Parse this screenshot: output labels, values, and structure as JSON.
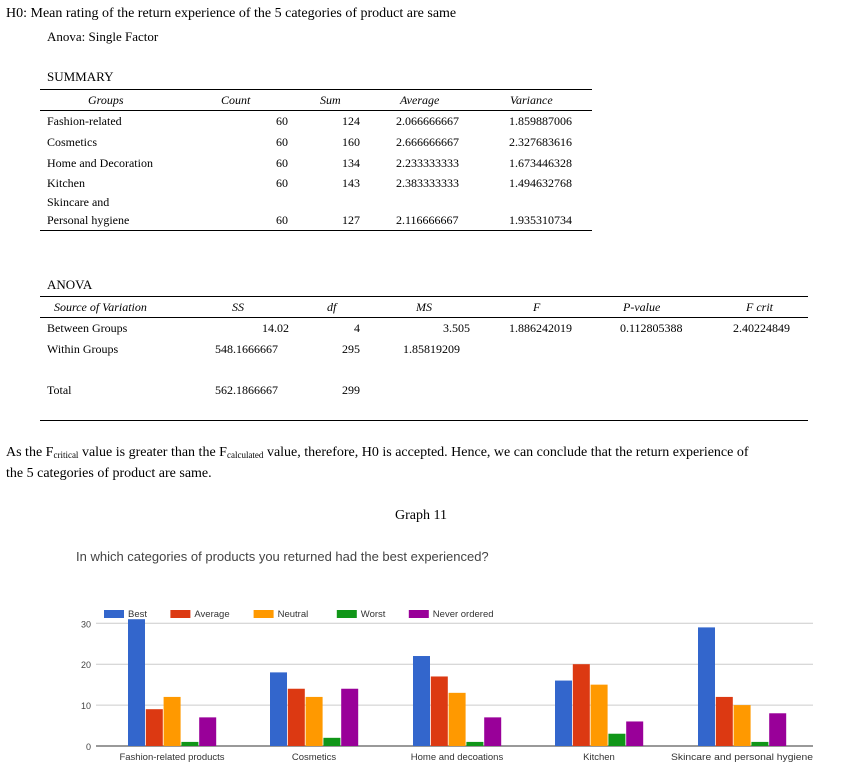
{
  "hypothesis": "H0: Mean rating of the return experience of the 5 categories of product are same",
  "anova_label": "Anova: Single Factor",
  "summary": {
    "title": "SUMMARY",
    "headers": [
      "Groups",
      "Count",
      "Sum",
      "Average",
      "Variance"
    ],
    "rows": [
      {
        "group": "Fashion-related",
        "group2": "",
        "count": "60",
        "sum": "124",
        "average": "2.066666667",
        "variance": "1.859887006"
      },
      {
        "group": "Cosmetics",
        "group2": "",
        "count": "60",
        "sum": "160",
        "average": "2.666666667",
        "variance": "2.327683616"
      },
      {
        "group": "Home and Decoration",
        "group2": "",
        "count": "60",
        "sum": "134",
        "average": "2.233333333",
        "variance": "1.673446328"
      },
      {
        "group": "Kitchen",
        "group2": "",
        "count": "60",
        "sum": "143",
        "average": "2.383333333",
        "variance": "1.494632768"
      },
      {
        "group": "Skincare and",
        "group2": "Personal hygiene",
        "count": "60",
        "sum": "127",
        "average": "2.116666667",
        "variance": "1.935310734"
      }
    ]
  },
  "anova": {
    "title": "ANOVA",
    "headers": [
      "Source of Variation",
      "SS",
      "df",
      "MS",
      "F",
      "P-value",
      "F crit"
    ],
    "rows": [
      {
        "source": "Between Groups",
        "ss": "14.02",
        "df": "4",
        "ms": "3.505",
        "f": "1.886242019",
        "p": "0.112805388",
        "fcrit": "2.40224849"
      },
      {
        "source": "Within Groups",
        "ss": "548.1666667",
        "df": "295",
        "ms": "1.85819209",
        "f": "",
        "p": "",
        "fcrit": ""
      },
      {
        "source": "Total",
        "ss": "562.1866667",
        "df": "299",
        "ms": "",
        "f": "",
        "p": "",
        "fcrit": ""
      }
    ]
  },
  "conclusion": {
    "p1": "As the F",
    "sub1": "critical",
    "p2": " value is greater than the F",
    "sub2": "calculated",
    "p3": " value, therefore, H0 is accepted. Hence, we can conclude that the return experience of",
    "line2": "the 5 categories of product are same."
  },
  "graph_caption": "Graph 11",
  "chart_data": {
    "type": "bar",
    "title": "In which categories of products you returned had the best experienced?",
    "categories": [
      "Fashion-related products",
      "Cosmetics",
      "Home and decoations",
      "Kitchen",
      "Skincare and personal hygiene"
    ],
    "series": [
      {
        "name": "Best",
        "color": "#3366cc",
        "values": [
          31,
          18,
          22,
          16,
          29
        ]
      },
      {
        "name": "Average",
        "color": "#dc3912",
        "values": [
          9,
          14,
          17,
          20,
          12
        ]
      },
      {
        "name": "Neutral",
        "color": "#ff9900",
        "values": [
          12,
          12,
          13,
          15,
          10
        ]
      },
      {
        "name": "Worst",
        "color": "#109618",
        "values": [
          1,
          2,
          1,
          3,
          1
        ]
      },
      {
        "name": "Never ordered",
        "color": "#990099",
        "values": [
          7,
          14,
          7,
          6,
          8
        ]
      }
    ],
    "yticks": [
      "0",
      "10",
      "20",
      "30"
    ],
    "ylim": [
      0,
      31
    ],
    "grid": true,
    "legend_position": "top-left"
  }
}
